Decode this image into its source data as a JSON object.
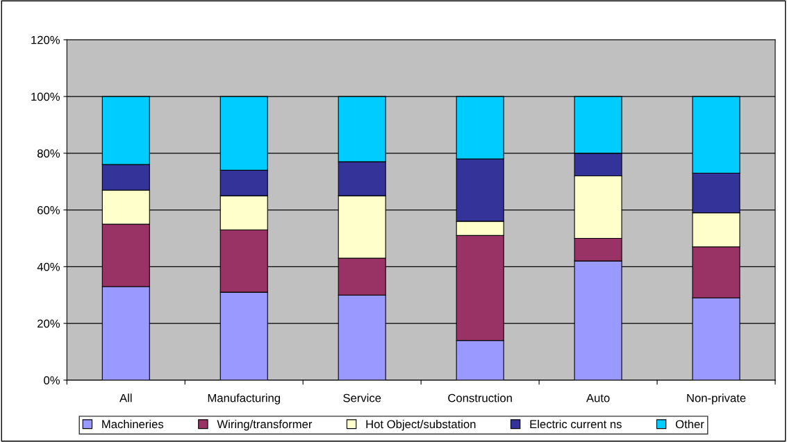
{
  "chart_data": {
    "type": "bar",
    "stacked": true,
    "categories": [
      "All",
      "Manufacturing",
      "Service",
      "Construction",
      "Auto",
      "Non-private"
    ],
    "series": [
      {
        "name": "Machineries",
        "color": "#9999ff",
        "values": [
          33,
          31,
          30,
          14,
          42,
          29
        ]
      },
      {
        "name": "Wiring/transformer",
        "color": "#993366",
        "values": [
          22,
          22,
          13,
          37,
          8,
          18
        ]
      },
      {
        "name": "Hot Object/substation",
        "color": "#ffffcc",
        "values": [
          12,
          12,
          22,
          5,
          22,
          12
        ]
      },
      {
        "name": "Electric current ns",
        "color": "#333399",
        "values": [
          9,
          9,
          12,
          22,
          8,
          14
        ]
      },
      {
        "name": "Other",
        "color": "#00ccff",
        "values": [
          24,
          26,
          23,
          22,
          20,
          27
        ]
      }
    ],
    "ylim": [
      0,
      120
    ],
    "yticks": [
      {
        "value": 0,
        "label": "0%"
      },
      {
        "value": 20,
        "label": "20%"
      },
      {
        "value": 40,
        "label": "40%"
      },
      {
        "value": 60,
        "label": "60%"
      },
      {
        "value": 80,
        "label": "80%"
      },
      {
        "value": 100,
        "label": "100%"
      },
      {
        "value": 120,
        "label": "120%"
      }
    ],
    "grid": "y",
    "legend": "bottom"
  }
}
